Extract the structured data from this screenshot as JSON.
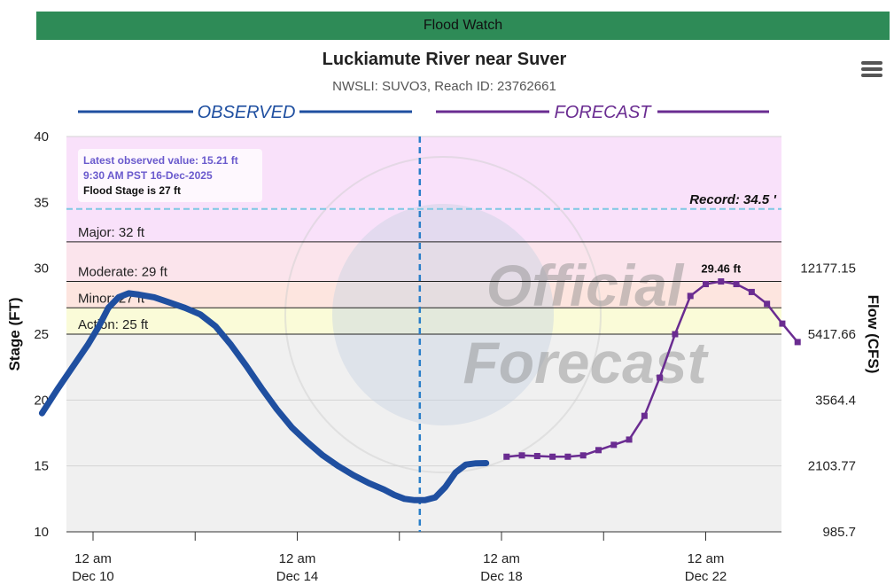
{
  "banner": {
    "label": "Flood Watch",
    "color": "#2e8b57"
  },
  "header": {
    "title": "Luckiamute River near Suver",
    "subtitle": "NWSLI: SUVO3, Reach ID: 23762661"
  },
  "menu_icon": "hamburger-menu-icon",
  "legend": {
    "observed": "OBSERVED",
    "forecast": "FORECAST"
  },
  "info_box": {
    "latest": "Latest observed value: 15.21 ft",
    "time": "9:30 AM PST 16-Dec-2025",
    "flood_stage": "Flood Stage is 27 ft"
  },
  "colors": {
    "observed": "#1f4fa0",
    "forecast": "#6a2c91",
    "record": "#7ec8e3",
    "now_line": "#2a7fc9",
    "zone_record": "#f9e1fa",
    "zone_major": "#fbe4ec",
    "zone_moderate": "#fde5df",
    "zone_minor": "#fdf3dc",
    "zone_action": "#fafbd8",
    "zone_normal": "#f0f0f0"
  },
  "chart_data": {
    "type": "line",
    "ylabel": "Stage (FT)",
    "y2label": "Flow (CFS)",
    "ylim": [
      10,
      40
    ],
    "y_ticks": [
      "10",
      "15",
      "20",
      "25",
      "30",
      "35",
      "40"
    ],
    "y2_ticks": [
      {
        "stage": 10,
        "label": "985.7"
      },
      {
        "stage": 15,
        "label": "2103.77"
      },
      {
        "stage": 20,
        "label": "3564.4"
      },
      {
        "stage": 25,
        "label": "5417.66"
      },
      {
        "stage": 30,
        "label": "12177.15"
      }
    ],
    "xlim_days": [
      8.7,
      23.7
    ],
    "x_ticks": [
      {
        "day": 10,
        "line1": "12 am",
        "line2": "Dec 10"
      },
      {
        "day": 14,
        "line1": "12 am",
        "line2": "Dec 14"
      },
      {
        "day": 18,
        "line1": "12 am",
        "line2": "Dec 18"
      },
      {
        "day": 22,
        "line1": "12 am",
        "line2": "Dec 22"
      }
    ],
    "minor_x_ticks": [
      12,
      16,
      20
    ],
    "now_day": 16.4,
    "thresholds": [
      {
        "name": "Record",
        "label": "Record: 34.5 '",
        "value": 34.5
      },
      {
        "name": "Major",
        "label": "Major: 32 ft",
        "value": 32
      },
      {
        "name": "Moderate",
        "label": "Moderate: 29 ft",
        "value": 29
      },
      {
        "name": "Minor",
        "label": "Minor: 27 ft",
        "value": 27
      },
      {
        "name": "Action",
        "label": "Action: 25 ft",
        "value": 25
      }
    ],
    "series": [
      {
        "name": "OBSERVED",
        "points": [
          [
            9.0,
            19.0
          ],
          [
            9.3,
            20.8
          ],
          [
            9.6,
            22.5
          ],
          [
            9.9,
            24.2
          ],
          [
            10.1,
            25.5
          ],
          [
            10.3,
            27.0
          ],
          [
            10.5,
            27.8
          ],
          [
            10.7,
            28.1
          ],
          [
            10.9,
            28.0
          ],
          [
            11.2,
            27.8
          ],
          [
            11.5,
            27.4
          ],
          [
            11.8,
            27.0
          ],
          [
            12.1,
            26.5
          ],
          [
            12.4,
            25.6
          ],
          [
            12.7,
            24.2
          ],
          [
            13.0,
            22.6
          ],
          [
            13.3,
            20.9
          ],
          [
            13.6,
            19.3
          ],
          [
            13.9,
            17.9
          ],
          [
            14.2,
            16.8
          ],
          [
            14.5,
            15.8
          ],
          [
            14.8,
            15.0
          ],
          [
            15.1,
            14.3
          ],
          [
            15.4,
            13.7
          ],
          [
            15.7,
            13.2
          ],
          [
            15.9,
            12.8
          ],
          [
            16.1,
            12.5
          ],
          [
            16.3,
            12.4
          ],
          [
            16.5,
            12.4
          ],
          [
            16.7,
            12.6
          ],
          [
            16.9,
            13.4
          ],
          [
            17.1,
            14.5
          ],
          [
            17.3,
            15.1
          ],
          [
            17.5,
            15.2
          ],
          [
            17.7,
            15.21
          ]
        ]
      },
      {
        "name": "FORECAST",
        "peak_label": "29.46 ft",
        "points": [
          [
            18.1,
            15.7
          ],
          [
            18.4,
            15.8
          ],
          [
            18.7,
            15.75
          ],
          [
            19.0,
            15.7
          ],
          [
            19.3,
            15.7
          ],
          [
            19.6,
            15.8
          ],
          [
            19.9,
            16.2
          ],
          [
            20.2,
            16.6
          ],
          [
            20.5,
            17.0
          ],
          [
            20.8,
            18.8
          ],
          [
            21.1,
            21.7
          ],
          [
            21.4,
            25.0
          ],
          [
            21.7,
            27.9
          ],
          [
            22.0,
            28.8
          ],
          [
            22.3,
            29.0
          ],
          [
            22.6,
            28.8
          ],
          [
            22.9,
            28.2
          ],
          [
            23.2,
            27.3
          ],
          [
            23.5,
            25.8
          ],
          [
            23.8,
            24.4
          ]
        ]
      }
    ]
  }
}
